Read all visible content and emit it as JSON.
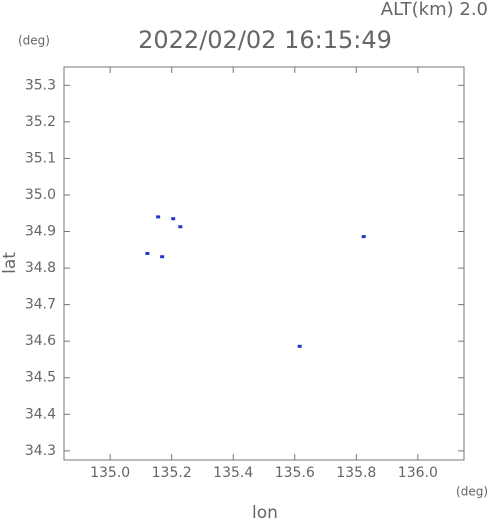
{
  "chart_data": {
    "type": "scatter",
    "title": "2022/02/02 16:15:49",
    "subtitle": "ALT(km) 2.0",
    "x_label": "lon",
    "y_label": "lat",
    "x_unit": "(deg)",
    "y_unit": "(deg)",
    "color": "#2233cc",
    "x": [
      135.156,
      135.205,
      135.228,
      135.121,
      135.169,
      135.824,
      135.616
    ],
    "values": [
      34.94,
      34.935,
      34.913,
      34.84,
      34.831,
      34.886,
      34.586
    ],
    "xlim": [
      134.85,
      136.15
    ],
    "ylim": [
      34.275,
      35.35
    ],
    "xticks": [
      {
        "value": 135,
        "label": "135.0"
      },
      135.2,
      135.4,
      135.6,
      135.8,
      {
        "value": 136,
        "label": "136.0"
      }
    ],
    "yticks": [
      34.3,
      34.4,
      34.5,
      34.6,
      34.7,
      34.8,
      34.9,
      {
        "value": 35,
        "label": "35.0"
      },
      35.1,
      35.2,
      35.3
    ],
    "grid": false
  }
}
